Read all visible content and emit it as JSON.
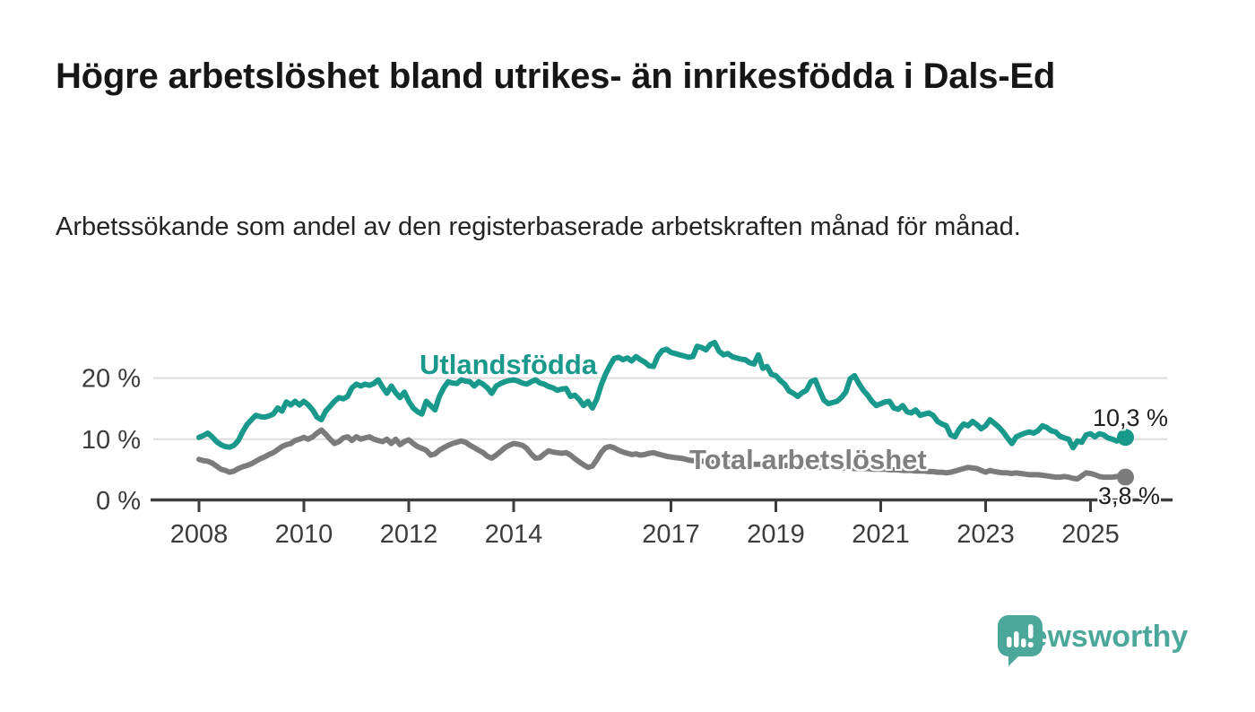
{
  "header": {
    "title": "Högre arbetslöshet bland utrikes- än inrikesfödda i Dals-Ed",
    "subtitle": "Arbetssökande som andel av den registerbaserade arbetskraften månad för månad."
  },
  "chart_data": {
    "type": "line",
    "title": "Högre arbetslöshet bland utrikes- än inrikesfödda i Dals-Ed",
    "subtitle": "Arbetssökande som andel av den registerbaserade arbetskraften månad för månad.",
    "unit": "%",
    "grid": "horizontal",
    "legend_position": "inline-labels",
    "x_axis": {
      "ticks": [
        2008,
        2010,
        2012,
        2014,
        2017,
        2019,
        2021,
        2023,
        2025
      ],
      "range_years": [
        2007.1,
        2026.4
      ]
    },
    "y_axis": {
      "ticks": [
        {
          "value": 0,
          "label": "0 %"
        },
        {
          "value": 10,
          "label": "10 %"
        },
        {
          "value": 20,
          "label": "20 %"
        }
      ],
      "range": [
        0,
        27
      ]
    },
    "time": {
      "start_year": 2008,
      "points_per_year": 12,
      "end": "2025-09"
    },
    "series": [
      {
        "name": "Utlandsfödda",
        "color": "#18998B",
        "end_label": "10,3 %",
        "end_value": 10.3,
        "values": [
          10.3,
          10.6,
          11.0,
          10.4,
          9.6,
          9.1,
          8.8,
          8.7,
          9.0,
          9.8,
          11.2,
          12.4,
          13.2,
          13.9,
          13.7,
          13.6,
          13.8,
          14.1,
          15.1,
          14.6,
          16.1,
          15.6,
          16.2,
          15.6,
          16.2,
          15.6,
          14.8,
          13.6,
          13.2,
          14.6,
          15.4,
          16.2,
          16.8,
          16.6,
          17.0,
          18.4,
          19.0,
          18.7,
          19.0,
          18.8,
          19.1,
          19.7,
          18.5,
          17.5,
          18.7,
          17.6,
          16.8,
          17.7,
          16.2,
          15.1,
          14.5,
          14.1,
          16.2,
          15.5,
          14.8,
          17.0,
          18.4,
          19.4,
          19.2,
          19.1,
          19.7,
          19.5,
          19.4,
          18.7,
          19.4,
          19.0,
          18.4,
          17.5,
          18.7,
          19.1,
          19.4,
          19.6,
          19.7,
          19.5,
          19.2,
          19.0,
          19.4,
          19.7,
          19.2,
          19.0,
          18.6,
          18.4,
          18.0,
          18.2,
          18.3,
          17.0,
          17.2,
          16.5,
          15.5,
          16.2,
          15.1,
          16.5,
          18.8,
          20.6,
          22.0,
          23.2,
          23.4,
          23.0,
          23.3,
          22.8,
          23.5,
          23.0,
          22.6,
          22.0,
          21.9,
          23.6,
          24.5,
          24.7,
          24.2,
          24.0,
          23.8,
          23.6,
          23.4,
          23.5,
          25.2,
          25.0,
          24.6,
          25.5,
          25.8,
          24.4,
          23.8,
          24.0,
          23.5,
          23.3,
          23.1,
          23.0,
          22.5,
          22.3,
          23.8,
          21.6,
          21.9,
          20.6,
          20.4,
          19.6,
          19.0,
          17.9,
          17.5,
          17.0,
          17.6,
          18.0,
          19.4,
          19.7,
          18.0,
          16.4,
          15.8,
          16.0,
          16.2,
          16.8,
          17.7,
          19.9,
          20.4,
          19.1,
          18.0,
          17.2,
          16.2,
          15.5,
          15.8,
          16.1,
          16.2,
          15.1,
          14.9,
          15.5,
          14.5,
          14.3,
          14.8,
          13.9,
          14.1,
          14.3,
          13.9,
          12.9,
          12.5,
          12.2,
          10.7,
          10.4,
          11.7,
          12.5,
          12.2,
          12.9,
          12.4,
          11.7,
          12.2,
          13.2,
          12.6,
          12.0,
          11.2,
          10.2,
          9.3,
          10.4,
          10.7,
          11.0,
          11.2,
          11.0,
          11.4,
          12.2,
          11.9,
          11.4,
          11.2,
          10.5,
          10.2,
          10.0,
          8.6,
          9.7,
          9.5,
          10.7,
          10.9,
          10.4,
          10.9,
          10.7,
          10.2,
          10.0,
          9.7,
          10.0,
          10.3
        ]
      },
      {
        "name": "Total arbetslöshet",
        "color": "#7B7B7B",
        "end_label": "3,8 %",
        "end_value": 3.8,
        "values": [
          6.7,
          6.5,
          6.4,
          6.1,
          5.6,
          5.1,
          4.9,
          4.6,
          4.8,
          5.2,
          5.5,
          5.7,
          6.0,
          6.4,
          6.8,
          7.1,
          7.5,
          7.8,
          8.3,
          8.8,
          9.1,
          9.3,
          9.8,
          10.0,
          10.3,
          10.0,
          10.4,
          11.0,
          11.5,
          10.8,
          10.0,
          9.3,
          9.6,
          10.2,
          10.4,
          9.8,
          10.4,
          10.0,
          10.2,
          10.4,
          10.0,
          9.8,
          9.6,
          10.0,
          9.3,
          10.0,
          9.1,
          9.6,
          9.9,
          9.3,
          8.8,
          8.5,
          8.2,
          7.4,
          7.6,
          8.2,
          8.6,
          9.0,
          9.3,
          9.5,
          9.7,
          9.5,
          9.0,
          8.6,
          8.2,
          7.8,
          7.2,
          6.9,
          7.4,
          8.0,
          8.6,
          9.0,
          9.3,
          9.2,
          9.0,
          8.5,
          7.6,
          6.9,
          7.0,
          7.6,
          8.1,
          7.9,
          7.8,
          7.7,
          7.8,
          7.4,
          6.8,
          6.3,
          5.8,
          5.4,
          5.6,
          6.6,
          7.8,
          8.6,
          8.8,
          8.6,
          8.2,
          7.9,
          7.7,
          7.5,
          7.6,
          7.4,
          7.5,
          7.7,
          7.8,
          7.6,
          7.4,
          7.2,
          7.1,
          7.0,
          6.9,
          6.8,
          6.6,
          6.5,
          6.5,
          6.4,
          6.4,
          6.3,
          6.3,
          6.2,
          6.2,
          6.2,
          6.1,
          6.1,
          6.0,
          6.0,
          6.0,
          5.9,
          5.9,
          5.9,
          5.8,
          5.8,
          5.8,
          5.7,
          5.7,
          5.7,
          5.6,
          5.6,
          5.6,
          5.5,
          5.5,
          5.5,
          5.4,
          5.4,
          5.4,
          5.4,
          5.3,
          5.3,
          5.3,
          5.3,
          5.2,
          5.2,
          5.2,
          5.2,
          5.1,
          5.1,
          5.1,
          5.1,
          5.0,
          5.0,
          5.0,
          4.9,
          4.9,
          4.9,
          4.8,
          4.8,
          4.8,
          4.7,
          4.7,
          4.6,
          4.6,
          4.5,
          4.6,
          4.8,
          5.0,
          5.2,
          5.4,
          5.3,
          5.2,
          4.9,
          4.6,
          4.9,
          4.7,
          4.6,
          4.5,
          4.5,
          4.4,
          4.5,
          4.4,
          4.3,
          4.2,
          4.2,
          4.2,
          4.1,
          4.0,
          3.9,
          3.8,
          3.8,
          3.9,
          3.8,
          3.6,
          3.5,
          4.0,
          4.5,
          4.4,
          4.2,
          3.9,
          3.8,
          3.8,
          3.8,
          3.9,
          3.9,
          3.8
        ]
      }
    ]
  },
  "colors": {
    "accent_teal": "#18998B",
    "series_gray": "#7B7B7B",
    "axis": "#3C3C3C",
    "grid": "#DCDCDC",
    "logo_teal": "#4CA79B",
    "background": "#FFFFFF"
  },
  "footer": {
    "brand": "Newsworthy"
  }
}
